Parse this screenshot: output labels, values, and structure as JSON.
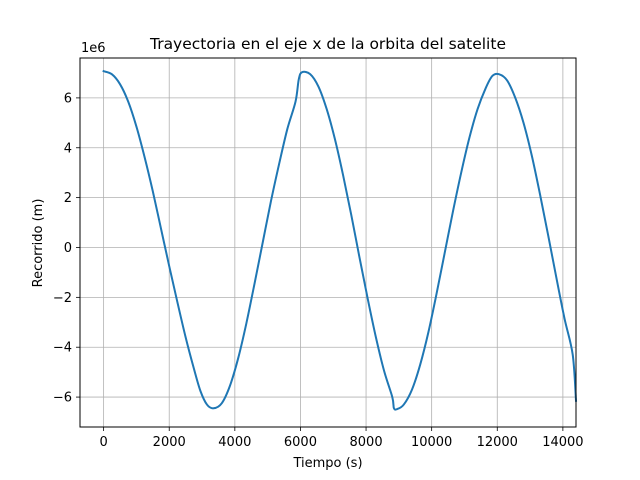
{
  "chart_data": {
    "type": "line",
    "title": "Trayectoria en el eje x de la orbita del satelite",
    "xlabel": "Tiempo (s)",
    "ylabel": "Recorrido (m)",
    "y_offset_label": "1e6",
    "xlim": [
      -720,
      14400
    ],
    "ylim": [
      -7.2,
      7.6
    ],
    "xticks": [
      0,
      2000,
      4000,
      6000,
      8000,
      10000,
      12000,
      14000
    ],
    "xtick_labels": [
      "0",
      "2000",
      "4000",
      "6000",
      "8000",
      "10000",
      "12000",
      "14000"
    ],
    "yticks": [
      -6,
      -4,
      -2,
      0,
      2,
      4,
      6
    ],
    "ytick_labels": [
      "−6",
      "−4",
      "−2",
      "0",
      "2",
      "4",
      "6"
    ],
    "grid": true,
    "series": [
      {
        "color": "#1f77b4",
        "x": [
          0,
          250,
          500,
          750,
          1000,
          1250,
          1500,
          1750,
          2000,
          2250,
          2500,
          2750,
          2950,
          3150,
          3350,
          3600,
          3850,
          4100,
          4350,
          4600,
          4850,
          5100,
          5350,
          5600,
          5850,
          5950,
          6050,
          6300,
          6550,
          6800,
          7050,
          7300,
          7550,
          7800,
          8050,
          8300,
          8550,
          8800,
          8850,
          8950,
          9150,
          9400,
          9650,
          9900,
          10150,
          10400,
          10650,
          10900,
          11150,
          11400,
          11650,
          11850,
          12050,
          12300,
          12550,
          12800,
          13050,
          13300,
          13550,
          13800,
          14050,
          14300,
          14400
        ],
        "y": [
          7.07,
          6.95,
          6.55,
          5.85,
          4.85,
          3.62,
          2.25,
          0.75,
          -0.75,
          -2.2,
          -3.6,
          -4.85,
          -5.75,
          -6.3,
          -6.45,
          -6.25,
          -5.55,
          -4.45,
          -3.05,
          -1.45,
          0.2,
          1.85,
          3.35,
          4.75,
          5.85,
          6.75,
          7.03,
          6.95,
          6.45,
          5.55,
          4.35,
          2.9,
          1.3,
          -0.4,
          -2.05,
          -3.6,
          -4.95,
          -6.0,
          -6.45,
          -6.48,
          -6.3,
          -5.7,
          -4.7,
          -3.4,
          -1.85,
          -0.2,
          1.45,
          3.0,
          4.4,
          5.55,
          6.4,
          6.88,
          6.95,
          6.7,
          6.0,
          5.0,
          3.7,
          2.15,
          0.5,
          -1.2,
          -2.85,
          -4.3,
          -6.15
        ]
      }
    ]
  }
}
